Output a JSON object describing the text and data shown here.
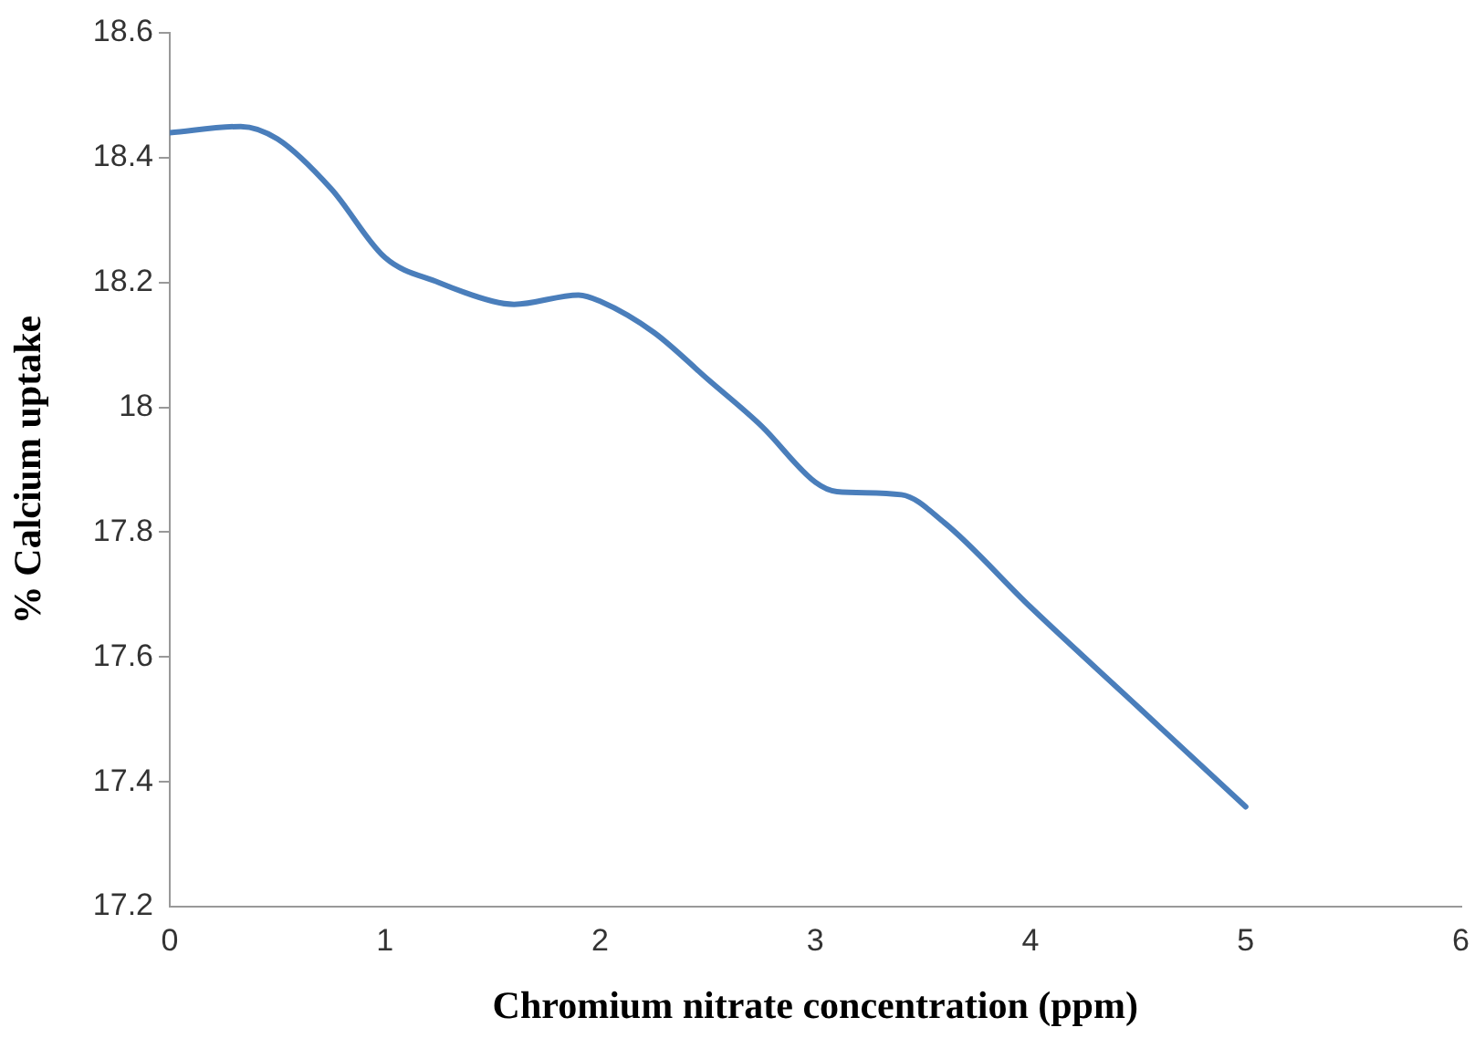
{
  "chart_data": {
    "type": "line",
    "xlabel": "Chromium nitrate concentration (ppm)",
    "ylabel": "% Calcium uptake",
    "x": [
      0,
      0.33,
      0.5,
      0.75,
      1,
      1.25,
      1.5,
      1.6,
      1.9,
      2,
      2.25,
      2.5,
      2.75,
      3,
      3.1,
      3.4,
      3.6,
      4,
      4.5,
      5
    ],
    "series": [
      {
        "color": "#4a7ebb",
        "values": [
          18.44,
          18.45,
          18.43,
          18.35,
          18.24,
          18.2,
          18.17,
          18.165,
          18.18,
          18.17,
          18.12,
          18.045,
          17.97,
          17.88,
          17.865,
          17.86,
          17.815,
          17.68,
          17.52,
          17.36
        ]
      }
    ],
    "xlim": [
      0,
      6
    ],
    "xticks": [
      0,
      1,
      2,
      3,
      4,
      5,
      6
    ],
    "ylim": [
      17.2,
      18.6
    ],
    "yticks": [
      17.2,
      17.4,
      17.6,
      17.8,
      18,
      18.2,
      18.4,
      18.6
    ],
    "grid": false,
    "legend": false,
    "marker": "none",
    "line_style": "solid"
  }
}
